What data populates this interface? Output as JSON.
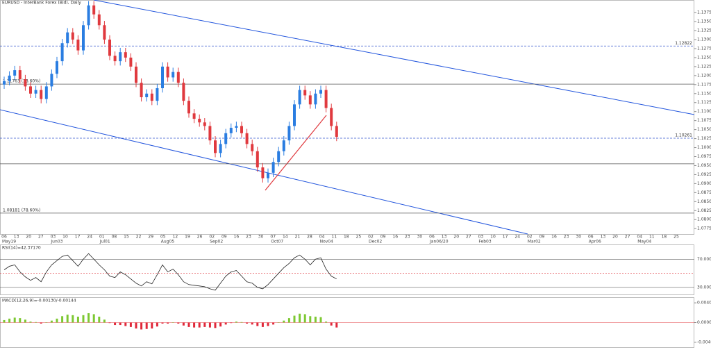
{
  "chart_data": {
    "type": "candlestick",
    "title": "EURUSD - InterBank Forex (Bid), Daily",
    "ylim": [
      1.0758,
      1.141
    ],
    "yticks": [
      {
        "value": 1.1375,
        "label": "1.13750"
      },
      {
        "value": 1.135,
        "label": "1.13500"
      },
      {
        "value": 1.1325,
        "label": "1.13250"
      },
      {
        "value": 1.13,
        "label": "1.13000"
      },
      {
        "value": 1.1275,
        "label": "1.12750"
      },
      {
        "value": 1.125,
        "label": "1.12500"
      },
      {
        "value": 1.1225,
        "label": "1.12250"
      },
      {
        "value": 1.12,
        "label": "1.12000"
      },
      {
        "value": 1.1175,
        "label": "1.11750"
      },
      {
        "value": 1.115,
        "label": "1.11500"
      },
      {
        "value": 1.1125,
        "label": "1.11250"
      },
      {
        "value": 1.11,
        "label": "1.11000"
      },
      {
        "value": 1.1075,
        "label": "1.10750"
      },
      {
        "value": 1.105,
        "label": "1.10500"
      },
      {
        "value": 1.1025,
        "label": "1.10250"
      },
      {
        "value": 1.1,
        "label": "1.10000"
      },
      {
        "value": 1.0975,
        "label": "1.09750"
      },
      {
        "value": 1.095,
        "label": "1.09500"
      },
      {
        "value": 1.0925,
        "label": "1.09250"
      },
      {
        "value": 1.09,
        "label": "1.09000"
      },
      {
        "value": 1.0875,
        "label": "1.08750"
      },
      {
        "value": 1.085,
        "label": "1.08500"
      },
      {
        "value": 1.0825,
        "label": "1.08250"
      },
      {
        "value": 1.08,
        "label": "1.08000"
      },
      {
        "value": 1.0775,
        "label": "1.07750"
      }
    ],
    "x_labels": [
      "06",
      "13",
      "20",
      "27",
      "03",
      "10",
      "17",
      "24",
      "01",
      "08",
      "15",
      "22",
      "29",
      "05",
      "12",
      "19",
      "26",
      "02",
      "09",
      "16",
      "23",
      "30",
      "07",
      "14",
      "21",
      "28",
      "04",
      "11",
      "18",
      "25",
      "02",
      "09",
      "16",
      "23",
      "30",
      "06",
      "13",
      "20",
      "27",
      "03",
      "10",
      "17",
      "24",
      "02",
      "09",
      "16",
      "23",
      "30",
      "06",
      "13",
      "20",
      "27",
      "04",
      "11",
      "18",
      "25"
    ],
    "months": [
      "May19",
      "Jun03",
      "Jul01",
      "Aug05",
      "Sep02",
      "Oct07",
      "Nov04",
      "Dec02",
      "Jan06/20",
      "Feb03",
      "Mar02",
      "Apr06",
      "May04"
    ],
    "up_color": "#2a7de1",
    "down_color": "#e0393e",
    "open": [
      1.1175,
      1.1185,
      1.12,
      1.1215,
      1.119,
      1.117,
      1.115,
      1.116,
      1.1135,
      1.117,
      1.1205,
      1.124,
      1.129,
      1.132,
      1.13,
      1.127,
      1.134,
      1.1395,
      1.137,
      1.134,
      1.13,
      1.1255,
      1.124,
      1.1265,
      1.125,
      1.1225,
      1.118,
      1.114,
      1.115,
      1.113,
      1.1165,
      1.1225,
      1.1195,
      1.121,
      1.118,
      1.113,
      1.1095,
      1.108,
      1.107,
      1.106,
      1.102,
      1.0985,
      1.101,
      1.104,
      1.1055,
      1.106,
      1.104,
      1.101,
      1.099,
      1.0945,
      1.0915,
      1.093,
      1.096,
      1.099,
      1.102,
      1.106,
      1.112,
      1.116,
      1.1145,
      1.112,
      1.115,
      1.116,
      1.111,
      1.106
    ],
    "high": [
      1.1197,
      1.1212,
      1.1227,
      1.1227,
      1.1202,
      1.1182,
      1.1172,
      1.1172,
      1.1182,
      1.1217,
      1.1252,
      1.1302,
      1.1332,
      1.1332,
      1.1312,
      1.1352,
      1.1407,
      1.1407,
      1.1382,
      1.1352,
      1.1312,
      1.1267,
      1.1277,
      1.1277,
      1.1262,
      1.1237,
      1.1192,
      1.1162,
      1.1162,
      1.1177,
      1.1237,
      1.1237,
      1.1222,
      1.1222,
      1.1192,
      1.1142,
      1.1107,
      1.1092,
      1.1082,
      1.1072,
      1.1032,
      1.1022,
      1.1052,
      1.1067,
      1.1072,
      1.1072,
      1.1052,
      1.1022,
      1.1002,
      1.0957,
      1.0942,
      1.0972,
      1.1002,
      1.1032,
      1.1072,
      1.1132,
      1.1172,
      1.1172,
      1.1157,
      1.1162,
      1.1172,
      1.1172,
      1.1122,
      1.1072
    ],
    "low": [
      1.1163,
      1.1173,
      1.1188,
      1.1178,
      1.1158,
      1.1138,
      1.1138,
      1.1123,
      1.1123,
      1.1158,
      1.1193,
      1.1228,
      1.1278,
      1.1288,
      1.1258,
      1.1258,
      1.1328,
      1.1358,
      1.1328,
      1.1288,
      1.1243,
      1.1228,
      1.1228,
      1.1238,
      1.1213,
      1.1168,
      1.1128,
      1.1128,
      1.1118,
      1.1118,
      1.1153,
      1.1183,
      1.1183,
      1.1168,
      1.1118,
      1.1083,
      1.1068,
      1.1058,
      1.1048,
      1.1008,
      1.0973,
      1.0973,
      1.0998,
      1.1028,
      1.1043,
      1.1028,
      1.0998,
      1.0978,
      1.0933,
      1.0903,
      1.0903,
      1.0918,
      1.0948,
      1.0978,
      1.1008,
      1.1048,
      1.1108,
      1.1133,
      1.1108,
      1.1108,
      1.1138,
      1.1098,
      1.1048,
      1.1018
    ],
    "close": [
      1.1185,
      1.12,
      1.1215,
      1.119,
      1.117,
      1.115,
      1.116,
      1.1135,
      1.117,
      1.1205,
      1.124,
      1.129,
      1.132,
      1.13,
      1.127,
      1.134,
      1.1395,
      1.137,
      1.134,
      1.13,
      1.1255,
      1.124,
      1.1265,
      1.125,
      1.1225,
      1.118,
      1.114,
      1.115,
      1.113,
      1.1165,
      1.1225,
      1.1195,
      1.121,
      1.118,
      1.113,
      1.1095,
      1.108,
      1.107,
      1.106,
      1.102,
      1.0985,
      1.101,
      1.104,
      1.1055,
      1.106,
      1.104,
      1.101,
      1.099,
      1.0945,
      1.0915,
      1.093,
      1.096,
      1.099,
      1.102,
      1.106,
      1.112,
      1.116,
      1.1145,
      1.112,
      1.115,
      1.116,
      1.111,
      1.106,
      1.103
    ],
    "levels": [
      {
        "value": 1.11763,
        "label": "1.11763 (38.60%)"
      },
      {
        "value": 1.08181,
        "label": "1.08181 (78.60%)"
      },
      {
        "value": 1.0955
      }
    ],
    "dashed_levels": [
      {
        "value": 1.12822,
        "label": "1.12822"
      },
      {
        "value": 1.10261,
        "label": "1.10261"
      }
    ],
    "rsi": {
      "title": "RSI(14)=42.37170",
      "ylim": [
        20,
        90
      ],
      "yticks": [
        {
          "value": 70,
          "label": "70.00000"
        },
        {
          "value": 30,
          "label": "30.00000"
        }
      ],
      "mid": 50,
      "color": "#222222",
      "values": [
        55,
        60,
        62,
        52,
        45,
        40,
        44,
        38,
        52,
        62,
        68,
        74,
        76,
        68,
        60,
        70,
        78,
        70,
        62,
        55,
        46,
        44,
        52,
        48,
        42,
        36,
        32,
        38,
        35,
        48,
        62,
        52,
        56,
        48,
        38,
        34,
        33,
        32,
        31,
        28,
        26,
        36,
        46,
        52,
        54,
        46,
        38,
        36,
        30,
        28,
        34,
        42,
        50,
        58,
        64,
        72,
        76,
        70,
        62,
        70,
        72,
        56,
        46,
        42
      ]
    },
    "macd": {
      "title": "MACD(12,26,9)=-0.00130/-0.00144",
      "ylim": [
        -0.005,
        0.005
      ],
      "yticks": [
        {
          "value": 0.004,
          "label": "0.00400"
        },
        {
          "value": 0,
          "label": "0.00000"
        },
        {
          "value": -0.004,
          "label": "-0.00400"
        }
      ],
      "up_color": "#7dc832",
      "down_color": "#e0283a",
      "values": [
        0.0005,
        0.0008,
        0.001,
        0.0009,
        0.0006,
        0.0002,
        0.0001,
        -0.0002,
        0.0,
        0.0004,
        0.0008,
        0.0013,
        0.0016,
        0.0015,
        0.0012,
        0.0015,
        0.0019,
        0.0017,
        0.0012,
        0.0006,
        -0.0001,
        -0.0005,
        -0.0005,
        -0.0007,
        -0.0009,
        -0.0012,
        -0.0014,
        -0.0013,
        -0.0012,
        -0.0008,
        -0.0002,
        -0.0002,
        0.0,
        -0.0002,
        -0.0006,
        -0.0009,
        -0.001,
        -0.001,
        -0.0009,
        -0.001,
        -0.0011,
        -0.0008,
        -0.0004,
        -0.0001,
        0.0002,
        0.0001,
        -0.0002,
        -0.0004,
        -0.0007,
        -0.0009,
        -0.0007,
        -0.0004,
        0.0,
        0.0004,
        0.0009,
        0.0014,
        0.0018,
        0.0017,
        0.0013,
        0.0012,
        0.0011,
        0.0002,
        -0.0006,
        -0.001
      ]
    }
  }
}
